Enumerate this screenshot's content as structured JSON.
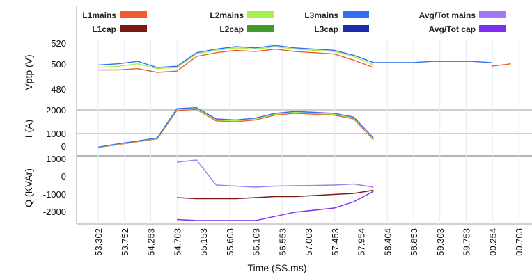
{
  "chart_data": {
    "type": "line",
    "legend": {
      "placement": "top",
      "entries": [
        {
          "name": "L1mains",
          "color": "#f25c2b"
        },
        {
          "name": "L1cap",
          "color": "#7a1a14"
        },
        {
          "name": "L2mains",
          "color": "#a6f04a"
        },
        {
          "name": "L2cap",
          "color": "#3f9a2a"
        },
        {
          "name": "L3mains",
          "color": "#2f6ff0"
        },
        {
          "name": "L3cap",
          "color": "#1d2bb0"
        },
        {
          "name": "Avg/Tot mains",
          "color": "#a07af2"
        },
        {
          "name": "Avg/Tot cap",
          "color": "#7b2ef0"
        }
      ]
    },
    "xlabel": "Time (SS.ms)",
    "x_ticks": [
      "53.302",
      "53.752",
      "54.253",
      "54.703",
      "55.153",
      "55.603",
      "56.103",
      "56.553",
      "57.003",
      "57.453",
      "57.954",
      "58.404",
      "58.853",
      "59.303",
      "59.753",
      "00.254",
      "00.703"
    ],
    "panels": [
      {
        "ylabel": "Vptp (V)",
        "ylim": [
          470,
          520
        ],
        "y_ticks": [
          "520",
          "500",
          "480"
        ],
        "series": [
          {
            "name": "L1mains",
            "values": [
              null,
              497,
              497,
              498,
              495,
              496,
              508,
              511,
              513,
              512,
              514,
              512,
              511,
              510,
              505,
              499,
              null,
              null,
              null,
              null,
              null,
              500,
              502,
              null
            ]
          },
          {
            "name": "L2mains",
            "values": [
              null,
              499,
              500,
              502,
              498,
              499,
              510,
              513,
              515,
              514,
              516,
              514,
              513,
              512,
              508,
              501,
              null,
              null,
              null,
              null,
              null,
              null,
              502,
              null
            ]
          },
          {
            "name": "L3mains",
            "values": [
              null,
              501,
              502,
              504,
              499,
              500,
              511,
              514,
              516,
              515,
              517,
              515,
              514,
              513,
              509,
              503,
              503,
              503,
              504,
              504,
              504,
              503,
              null,
              null
            ]
          }
        ]
      },
      {
        "ylabel": "I (A)",
        "ylim": [
          -300,
          2200
        ],
        "y_ticks": [
          "2000",
          "1000",
          "0"
        ],
        "series": [
          {
            "name": "L1mains",
            "values": [
              null,
              0,
              150,
              300,
              450,
              1950,
              2000,
              1400,
              1350,
              1450,
              1700,
              1800,
              1750,
              1700,
              1500,
              400,
              null,
              null,
              null,
              null,
              null,
              null,
              null,
              null
            ]
          },
          {
            "name": "L2mains",
            "values": [
              null,
              0,
              170,
              320,
              480,
              2000,
              2050,
              1450,
              1400,
              1500,
              1750,
              1850,
              1800,
              1750,
              1550,
              450,
              null,
              null,
              null,
              null,
              null,
              null,
              null,
              null
            ]
          },
          {
            "name": "L3mains",
            "values": [
              null,
              20,
              190,
              340,
              500,
              2050,
              2100,
              1500,
              1450,
              1550,
              1800,
              1900,
              1850,
              1800,
              1600,
              500,
              null,
              null,
              null,
              null,
              null,
              null,
              null,
              null
            ]
          }
        ]
      },
      {
        "ylabel": "Q (KVAr)",
        "ylim": [
          -2100,
          1100
        ],
        "y_ticks": [
          "1000",
          "0",
          "-1000",
          "-2000"
        ],
        "series": [
          {
            "name": "Avg/Tot mains",
            "values": [
              null,
              null,
              null,
              null,
              null,
              800,
              900,
              -300,
              -350,
              -400,
              -350,
              -330,
              -320,
              -300,
              -250,
              -400,
              null,
              null,
              null,
              null,
              null,
              null,
              null,
              null
            ]
          },
          {
            "name": "Avg/Tot cap",
            "values": [
              null,
              null,
              null,
              null,
              null,
              -1950,
              -2000,
              -2000,
              -2000,
              -2000,
              -1800,
              -1600,
              -1500,
              -1400,
              -1100,
              -600,
              null,
              null,
              null,
              null,
              null,
              null,
              null,
              null
            ]
          },
          {
            "name": "L1cap",
            "values": [
              null,
              null,
              null,
              null,
              null,
              -900,
              -950,
              -950,
              -950,
              -900,
              -850,
              -850,
              -800,
              -750,
              -700,
              -550,
              null,
              null,
              null,
              null,
              null,
              null,
              null,
              null
            ]
          }
        ]
      }
    ]
  }
}
